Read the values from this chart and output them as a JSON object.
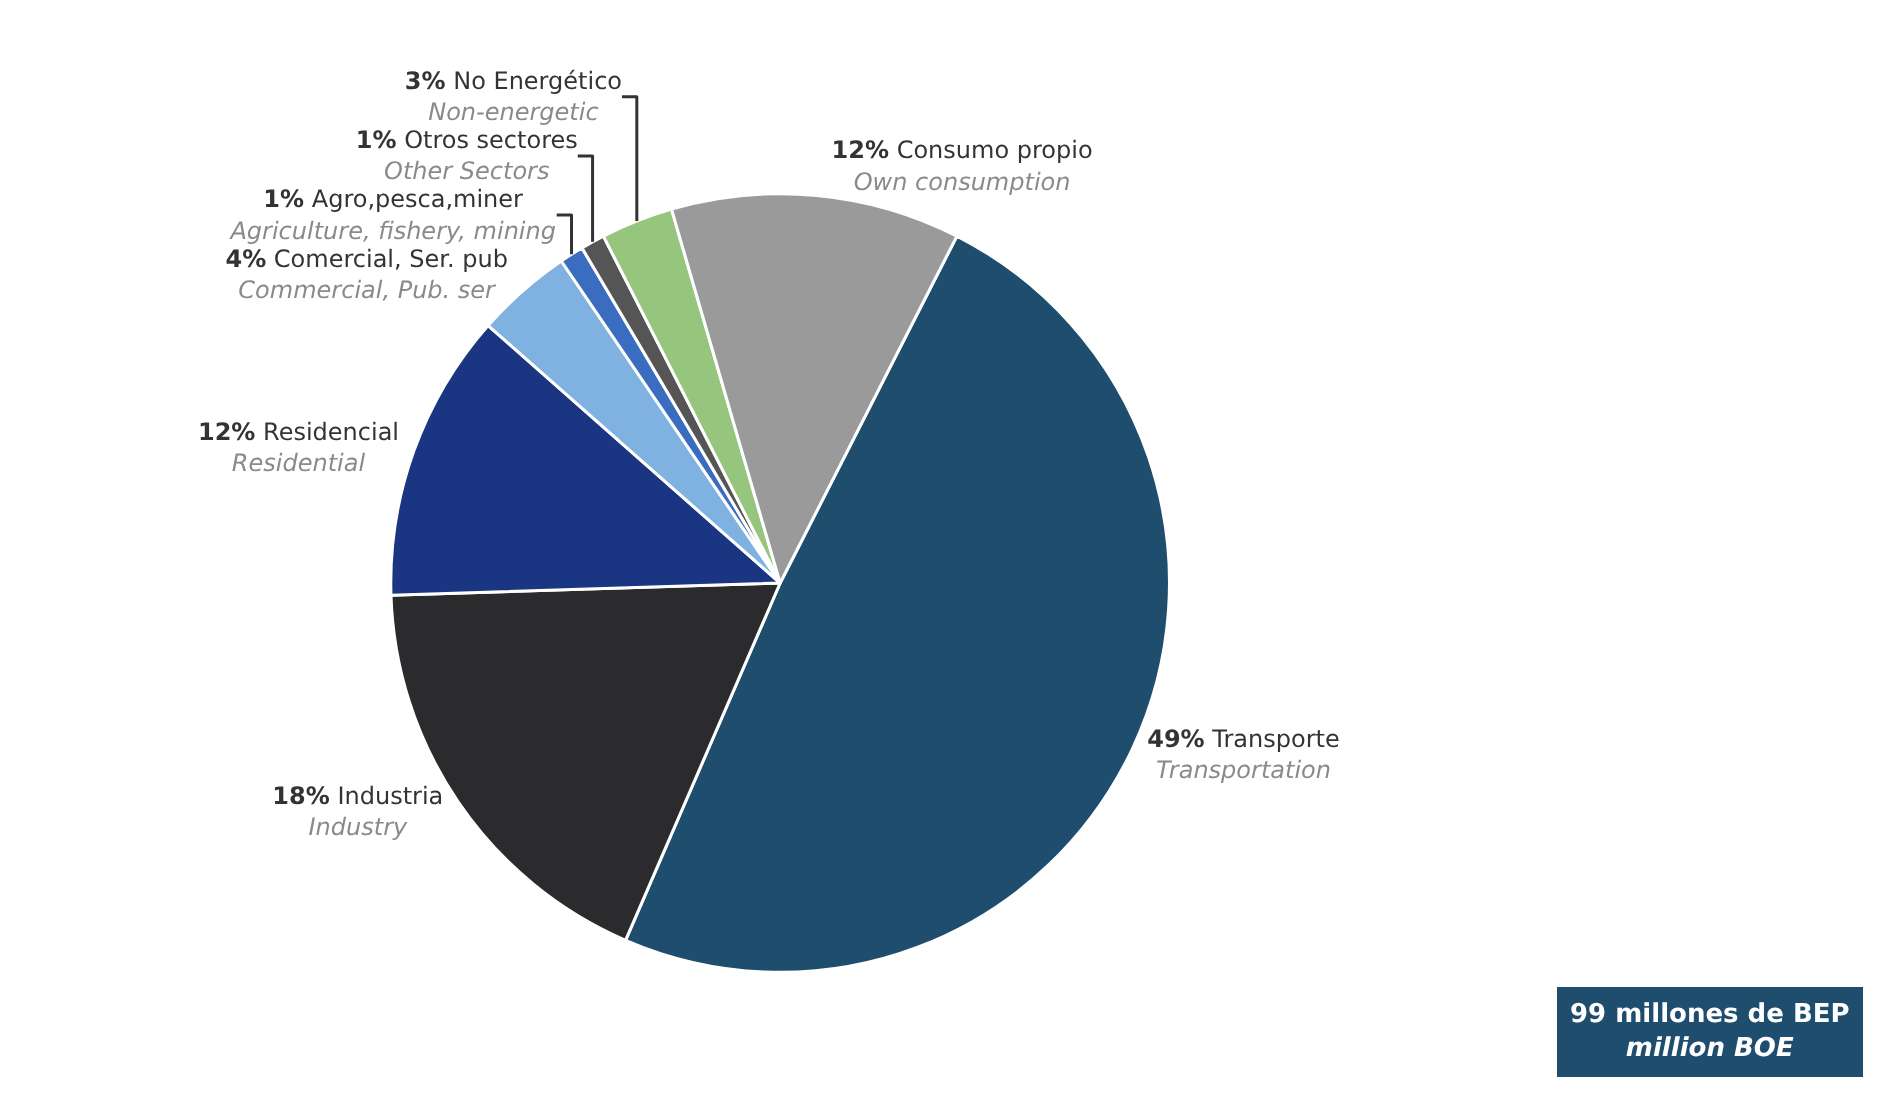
{
  "chart_data": {
    "type": "pie",
    "categories": [
      "Transporte\nTransportation",
      "Industria\nIndustry",
      "Residencial\nResidential",
      "Comercial, Ser. pub\nCommercial, Pub. ser",
      "Agro,pesca,miner\nAgriculture, fishery, mining",
      "Otros sectores\nOther Sectors",
      "No Energético\nNon-energetic",
      "Consumo propio\nOwn consumption"
    ],
    "values": [
      49,
      18,
      12,
      4,
      1,
      1,
      3,
      12
    ],
    "colors": [
      "#1e4d6e",
      "#2b2b2e",
      "#1a3582",
      "#7fb2e0",
      "#3a6cc0",
      "#555555",
      "#96c67e",
      "#9a9a9a"
    ],
    "value_labels": [
      "49%",
      "18%",
      "12%",
      "4%",
      "1%",
      "1%",
      "3%",
      "12%"
    ],
    "legend": false,
    "annotations": [
      "99 millones de BEP\nmillion BOE"
    ]
  }
}
